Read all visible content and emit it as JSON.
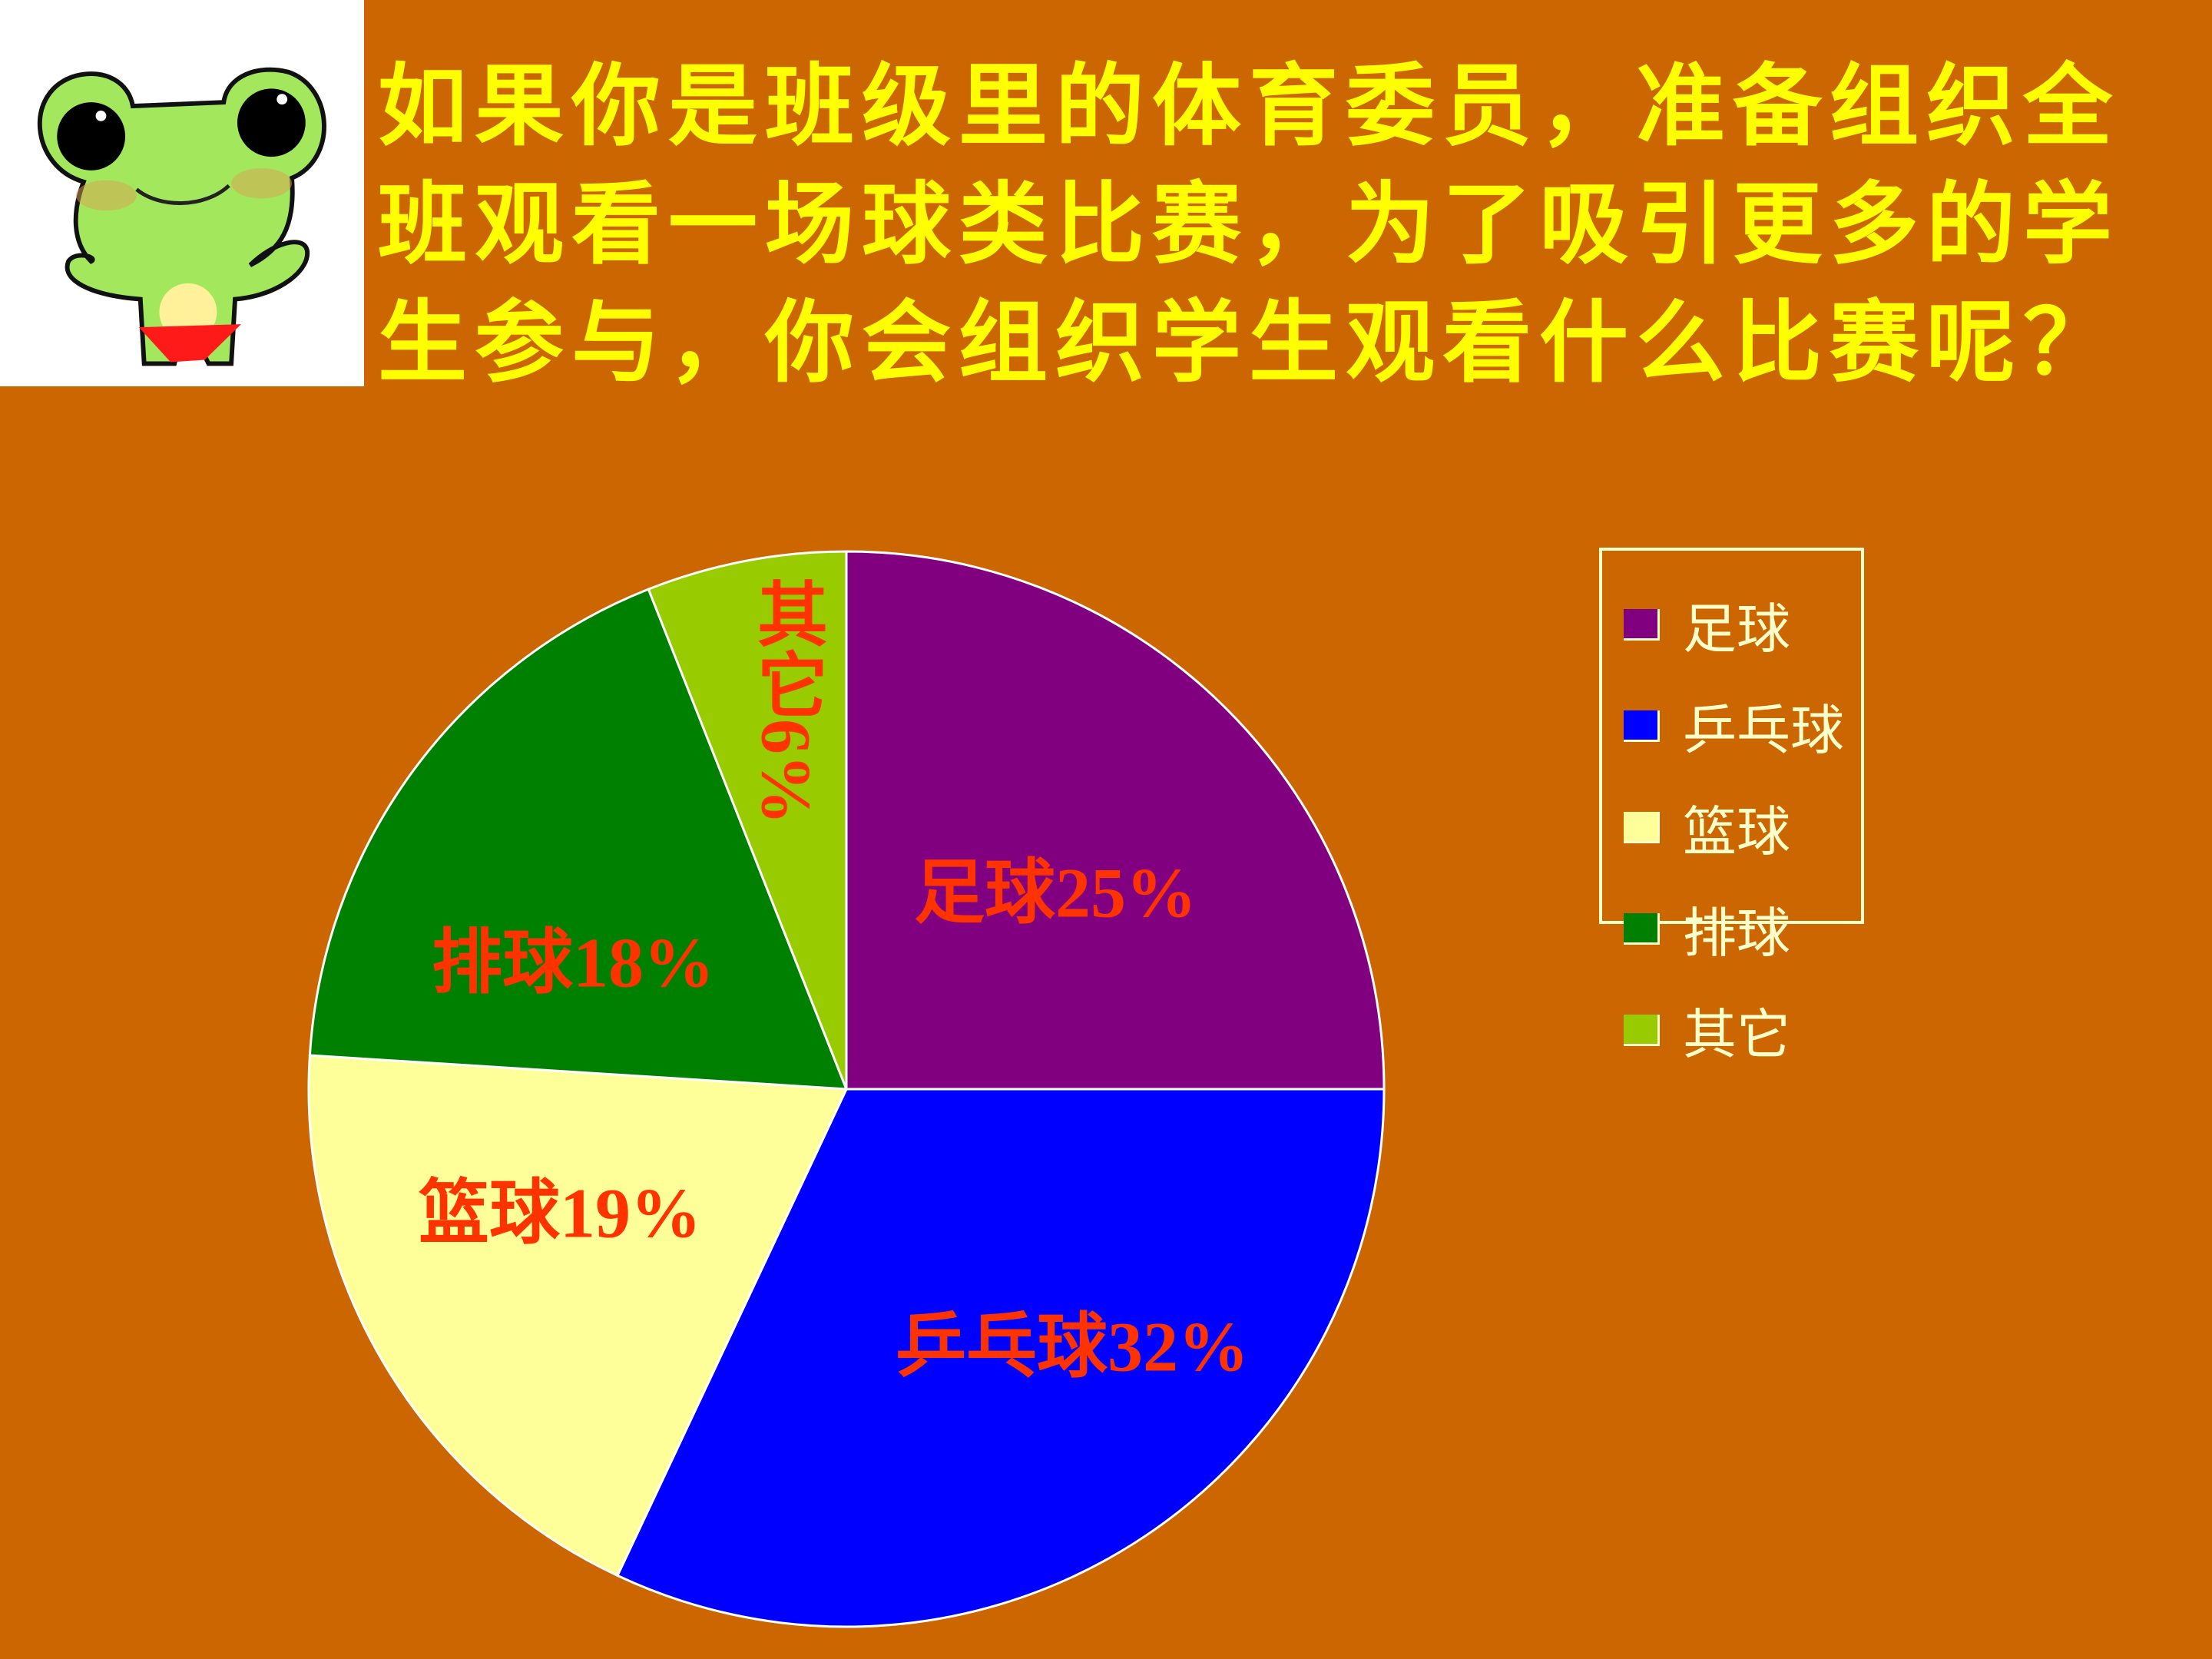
{
  "title_lines": [
    "如果你是班级里的体育委员，准备组织全",
    "班观看一场球类比赛，为了吸引更多的学",
    "生参与，你会组织学生观看什么比赛呢？"
  ],
  "background_color": "#CC6600",
  "title_color": "#FFFF00",
  "label_color": "#FF3300",
  "decoration": "cartoon-frog",
  "chart_data": {
    "type": "pie",
    "start": "12 o'clock, clockwise",
    "categories": [
      "足球",
      "乒乓球",
      "篮球",
      "排球",
      "其它"
    ],
    "values": [
      25,
      32,
      19,
      18,
      6
    ],
    "unit": "%",
    "colors": [
      "#800080",
      "#0000FF",
      "#FFFF99",
      "#008000",
      "#99CC00"
    ],
    "data_labels": [
      "足球25%",
      "乒乓球32%",
      "篮球19%",
      "排球18%",
      "其它6%"
    ],
    "legend": {
      "placement": "right",
      "entries": [
        "足球",
        "乒乓球",
        "篮球",
        "排球",
        "其它"
      ]
    }
  }
}
